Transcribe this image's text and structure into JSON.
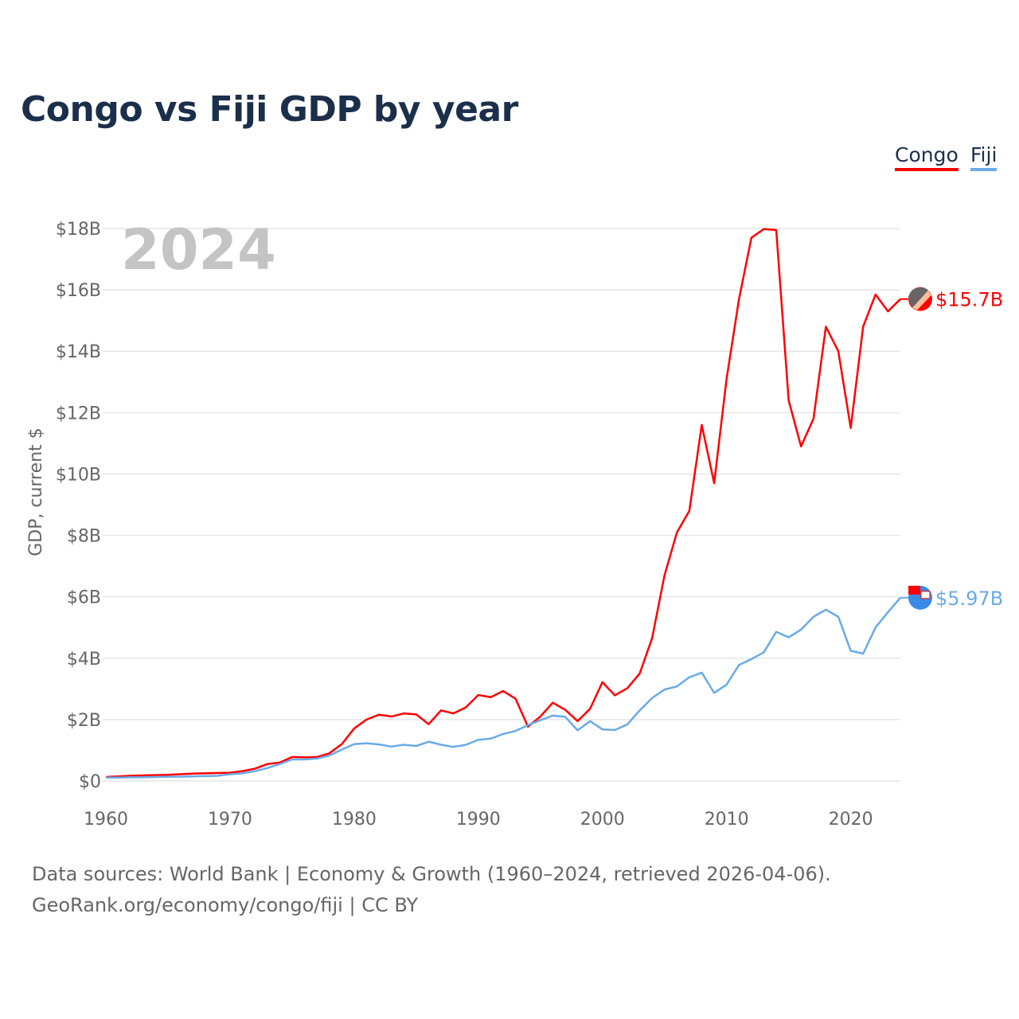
{
  "chart_data": {
    "type": "line",
    "title": "Congo vs Fiji GDP by year",
    "ylabel": "GDP, current $",
    "xlabel": "",
    "year_label": "2024",
    "xlim": [
      1960,
      2024
    ],
    "ylim": [
      0,
      18
    ],
    "grid": true,
    "legend_placement": "top-right",
    "x_ticks": [
      1960,
      1970,
      1980,
      1990,
      2000,
      2010,
      2020
    ],
    "y_ticks": [
      {
        "v": 0,
        "label": "$0"
      },
      {
        "v": 2,
        "label": "$2B"
      },
      {
        "v": 4,
        "label": "$4B"
      },
      {
        "v": 6,
        "label": "$6B"
      },
      {
        "v": 8,
        "label": "$8B"
      },
      {
        "v": 10,
        "label": "$10B"
      },
      {
        "v": 12,
        "label": "$12B"
      },
      {
        "v": 14,
        "label": "$14B"
      },
      {
        "v": 16,
        "label": "$16B"
      },
      {
        "v": 18,
        "label": "$18B"
      }
    ],
    "units": "billions USD",
    "x_start": 1960,
    "series": [
      {
        "name": "Congo",
        "color": "#ff0000",
        "end_label": "$15.7B",
        "values": [
          0.13,
          0.15,
          0.17,
          0.18,
          0.19,
          0.2,
          0.22,
          0.24,
          0.25,
          0.26,
          0.27,
          0.32,
          0.4,
          0.55,
          0.6,
          0.78,
          0.77,
          0.78,
          0.9,
          1.2,
          1.71,
          2.0,
          2.16,
          2.1,
          2.2,
          2.17,
          1.85,
          2.3,
          2.2,
          2.4,
          2.8,
          2.73,
          2.93,
          2.68,
          1.77,
          2.1,
          2.55,
          2.32,
          1.95,
          2.35,
          3.22,
          2.79,
          3.02,
          3.5,
          4.65,
          6.7,
          8.1,
          8.8,
          11.6,
          9.7,
          13.1,
          15.7,
          17.7,
          17.98,
          17.95,
          12.4,
          10.9,
          11.8,
          14.8,
          14.0,
          11.5,
          14.8,
          15.85,
          15.3,
          15.7
        ]
      },
      {
        "name": "Fiji",
        "color": "#6aaae8",
        "end_label": "$5.97B",
        "values": [
          0.11,
          0.11,
          0.12,
          0.12,
          0.13,
          0.14,
          0.14,
          0.15,
          0.16,
          0.17,
          0.22,
          0.25,
          0.32,
          0.42,
          0.55,
          0.7,
          0.7,
          0.73,
          0.83,
          1.02,
          1.2,
          1.23,
          1.19,
          1.12,
          1.18,
          1.14,
          1.28,
          1.18,
          1.11,
          1.18,
          1.34,
          1.38,
          1.53,
          1.63,
          1.82,
          1.98,
          2.13,
          2.09,
          1.65,
          1.95,
          1.68,
          1.66,
          1.84,
          2.3,
          2.7,
          2.98,
          3.08,
          3.38,
          3.53,
          2.87,
          3.14,
          3.78,
          3.97,
          4.19,
          4.86,
          4.68,
          4.93,
          5.35,
          5.58,
          5.35,
          4.24,
          4.15,
          5.0,
          5.5,
          5.97
        ]
      }
    ]
  },
  "footer": {
    "line1": "Data sources: World Bank | Economy & Growth (1960–2024, retrieved 2026-04-06).",
    "line2": "GeoRank.org/economy/congo/fiji | CC BY"
  }
}
